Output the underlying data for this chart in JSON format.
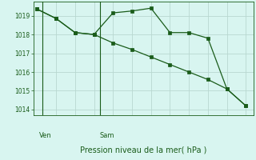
{
  "line1_x": [
    0,
    1,
    2,
    3,
    4,
    5,
    6,
    7,
    8,
    9,
    10,
    11
  ],
  "line1_y": [
    1019.35,
    1018.85,
    1018.1,
    1018.0,
    1019.15,
    1019.25,
    1019.4,
    1018.1,
    1018.1,
    1017.8,
    1015.1,
    1014.2
  ],
  "line2_x": [
    0,
    1,
    2,
    3,
    4,
    5,
    6,
    7,
    8,
    9,
    10,
    11
  ],
  "line2_y": [
    1019.35,
    1018.85,
    1018.1,
    1018.0,
    1017.55,
    1017.2,
    1016.8,
    1016.4,
    1016.0,
    1015.6,
    1015.1,
    1014.2
  ],
  "line_color": "#1a5c1a",
  "background_color": "#d8f5f0",
  "grid_color": "#b8d8d0",
  "xlabel": "Pression niveau de la mer( hPa )",
  "ylim": [
    1013.7,
    1019.75
  ],
  "yticks": [
    1014,
    1015,
    1016,
    1017,
    1018,
    1019
  ],
  "xlim": [
    -0.2,
    11.4
  ],
  "ven_x": 0.3,
  "sam_x": 3.3,
  "ven_label": "Ven",
  "sam_label": "Sam"
}
